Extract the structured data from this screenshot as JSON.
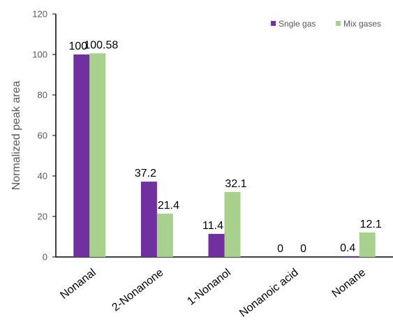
{
  "chart_data": {
    "type": "bar",
    "categories": [
      "Nonanal",
      "2-Nonanone",
      "1-Nonanol",
      "Nonanoic acid",
      "Nonane"
    ],
    "series": [
      {
        "name": "Sngle gas",
        "values": [
          100,
          37.2,
          11.4,
          0,
          0.4
        ],
        "labels": [
          "100",
          "37.2",
          "11.4",
          "0",
          "0.4"
        ],
        "color": "#7030a0"
      },
      {
        "name": "Mix gases",
        "values": [
          100.58,
          21.4,
          32.1,
          0,
          12.1
        ],
        "labels": [
          "100.58",
          "21.4",
          "32.1",
          "0",
          "12.1"
        ],
        "color": "#a9d18e"
      }
    ],
    "title": "",
    "xlabel": "",
    "ylabel": "Normalized peak area",
    "ylim": [
      0,
      120
    ],
    "yticks": [
      0,
      20,
      40,
      60,
      80,
      100,
      120
    ],
    "grid": false,
    "legend_position": "top-right"
  }
}
